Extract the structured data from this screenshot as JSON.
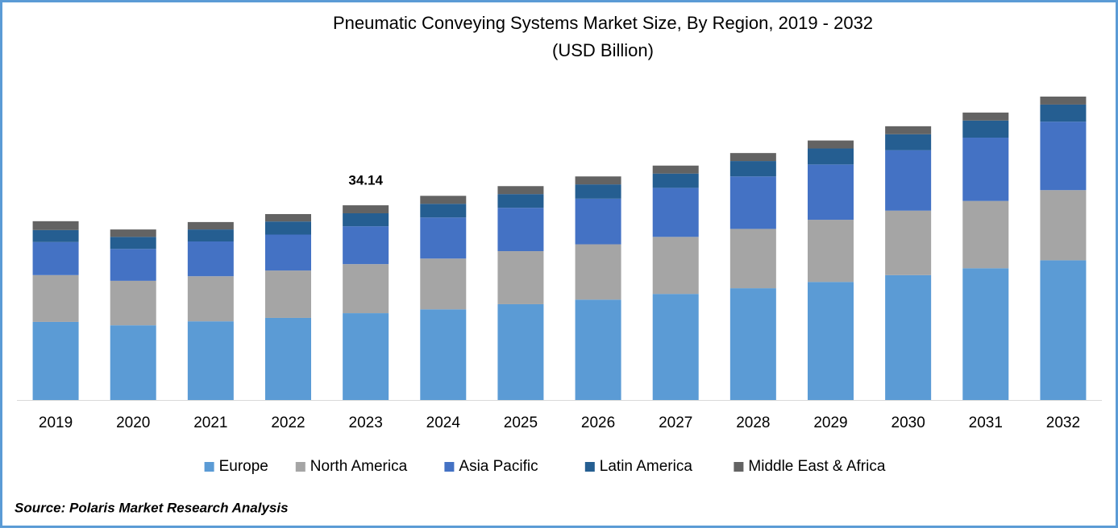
{
  "chart_data": {
    "type": "stacked-bar",
    "title": "Pneumatic Conveying Systems Market Size, By Region, 2019 - 2032",
    "subtitle": "(USD Billion)",
    "categories": [
      "2019",
      "2020",
      "2021",
      "2022",
      "2023",
      "2024",
      "2025",
      "2026",
      "2027",
      "2028",
      "2029",
      "2030",
      "2031",
      "2032"
    ],
    "series": [
      {
        "name": "Europe",
        "color": "#5b9bd5",
        "values": [
          13.7,
          13.1,
          13.8,
          14.4,
          15.23,
          15.9,
          16.8,
          17.6,
          18.6,
          19.6,
          20.7,
          21.9,
          23.1,
          24.5
        ]
      },
      {
        "name": "North America",
        "color": "#a5a5a5",
        "values": [
          8.2,
          7.8,
          7.9,
          8.3,
          8.6,
          8.9,
          9.3,
          9.7,
          10.0,
          10.4,
          10.9,
          11.3,
          11.8,
          12.3
        ]
      },
      {
        "name": "Asia Pacific",
        "color": "#4472c4",
        "values": [
          5.8,
          5.6,
          6.1,
          6.3,
          6.63,
          7.2,
          7.6,
          8.0,
          8.6,
          9.2,
          9.7,
          10.6,
          11.1,
          12.0
        ]
      },
      {
        "name": "Latin America",
        "color": "#255e91",
        "values": [
          2.1,
          2.1,
          2.1,
          2.3,
          2.28,
          2.4,
          2.4,
          2.5,
          2.5,
          2.7,
          2.8,
          2.8,
          3.0,
          3.0
        ]
      },
      {
        "name": "Middle East & Africa",
        "color": "#636363",
        "values": [
          1.55,
          1.3,
          1.3,
          1.3,
          1.4,
          1.4,
          1.4,
          1.4,
          1.4,
          1.4,
          1.4,
          1.4,
          1.4,
          1.4
        ]
      }
    ],
    "annotation": {
      "category": "2023",
      "value": 34.14
    },
    "legend": "bottom",
    "source": "Source: Polaris Market Research Analysis"
  }
}
